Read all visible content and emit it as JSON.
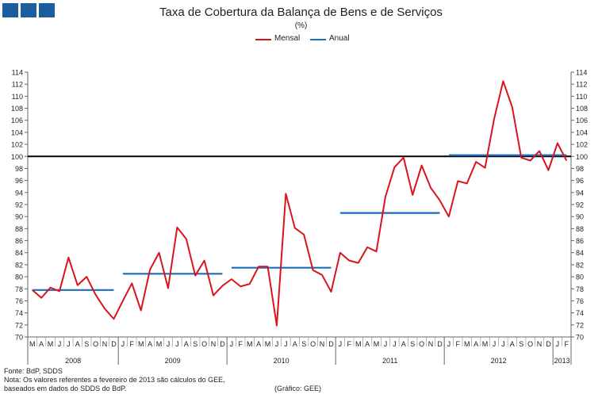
{
  "title": "Taxa de Cobertura da Balança de Bens e de Serviços",
  "subtitle": "(%)",
  "colors": {
    "brand": "#1b5e9e",
    "mensal": "#d9141c",
    "anual": "#1a6fb6",
    "reference": "#000000"
  },
  "legend": {
    "mensal": "Mensal",
    "anual": "Anual"
  },
  "chart_data": {
    "type": "line",
    "ylim": [
      70,
      114
    ],
    "ytick_step": 2,
    "reference_line": 100,
    "month_labels": [
      "M",
      "A",
      "M",
      "J",
      "J",
      "A",
      "S",
      "O",
      "N",
      "D",
      "J",
      "F",
      "M",
      "A",
      "M",
      "J",
      "J",
      "A",
      "S",
      "O",
      "N",
      "D",
      "J",
      "F",
      "M",
      "A",
      "M",
      "J",
      "J",
      "A",
      "S",
      "O",
      "N",
      "D",
      "J",
      "F",
      "M",
      "A",
      "M",
      "J",
      "J",
      "A",
      "S",
      "O",
      "N",
      "D",
      "J",
      "F",
      "M",
      "A",
      "M",
      "J",
      "J",
      "A",
      "S",
      "O",
      "N",
      "D",
      "J",
      "F"
    ],
    "year_labels": [
      {
        "label": "2008",
        "start": 0,
        "end": 9
      },
      {
        "label": "2009",
        "start": 10,
        "end": 21
      },
      {
        "label": "2010",
        "start": 22,
        "end": 33
      },
      {
        "label": "2011",
        "start": 34,
        "end": 45
      },
      {
        "label": "2012",
        "start": 46,
        "end": 57
      },
      {
        "label": "2013",
        "start": 58,
        "end": 59
      }
    ],
    "series": [
      {
        "name": "Mensal",
        "values": [
          77.8,
          76.5,
          78.2,
          77.6,
          83.2,
          78.6,
          80.0,
          77.0,
          74.7,
          73.0,
          76.0,
          78.9,
          74.4,
          81.2,
          84.0,
          78.1,
          88.2,
          86.3,
          80.2,
          82.7,
          76.9,
          78.5,
          79.6,
          78.4,
          78.8,
          81.7,
          81.7,
          71.9,
          93.8,
          88.1,
          87.0,
          81.1,
          80.3,
          77.5,
          84.0,
          82.7,
          82.3,
          84.9,
          84.2,
          93.3,
          98.2,
          99.8,
          93.6,
          98.5,
          94.8,
          92.7,
          90.0,
          95.9,
          95.5,
          99.1,
          98.1,
          106.2,
          112.5,
          108.2,
          99.8,
          99.3,
          100.9,
          97.7,
          102.2,
          99.3
        ]
      },
      {
        "name": "Anual",
        "segments": [
          {
            "start": 0,
            "end": 9,
            "value": 77.8
          },
          {
            "start": 10,
            "end": 21,
            "value": 80.5
          },
          {
            "start": 22,
            "end": 33,
            "value": 81.5
          },
          {
            "start": 34,
            "end": 45,
            "value": 90.6
          },
          {
            "start": 46,
            "end": 59,
            "value": 100.2
          }
        ]
      }
    ]
  },
  "footer": {
    "source": "Fonte: BdP, SDDS",
    "note_line1": "Nota: Os valores  referentes  a fevereiro  de 2013 são cálculos do GEE,",
    "note_line2": "baseados  em dados  do SDDS  do BdP.",
    "credit": "(Gráfico:  GEE)"
  }
}
